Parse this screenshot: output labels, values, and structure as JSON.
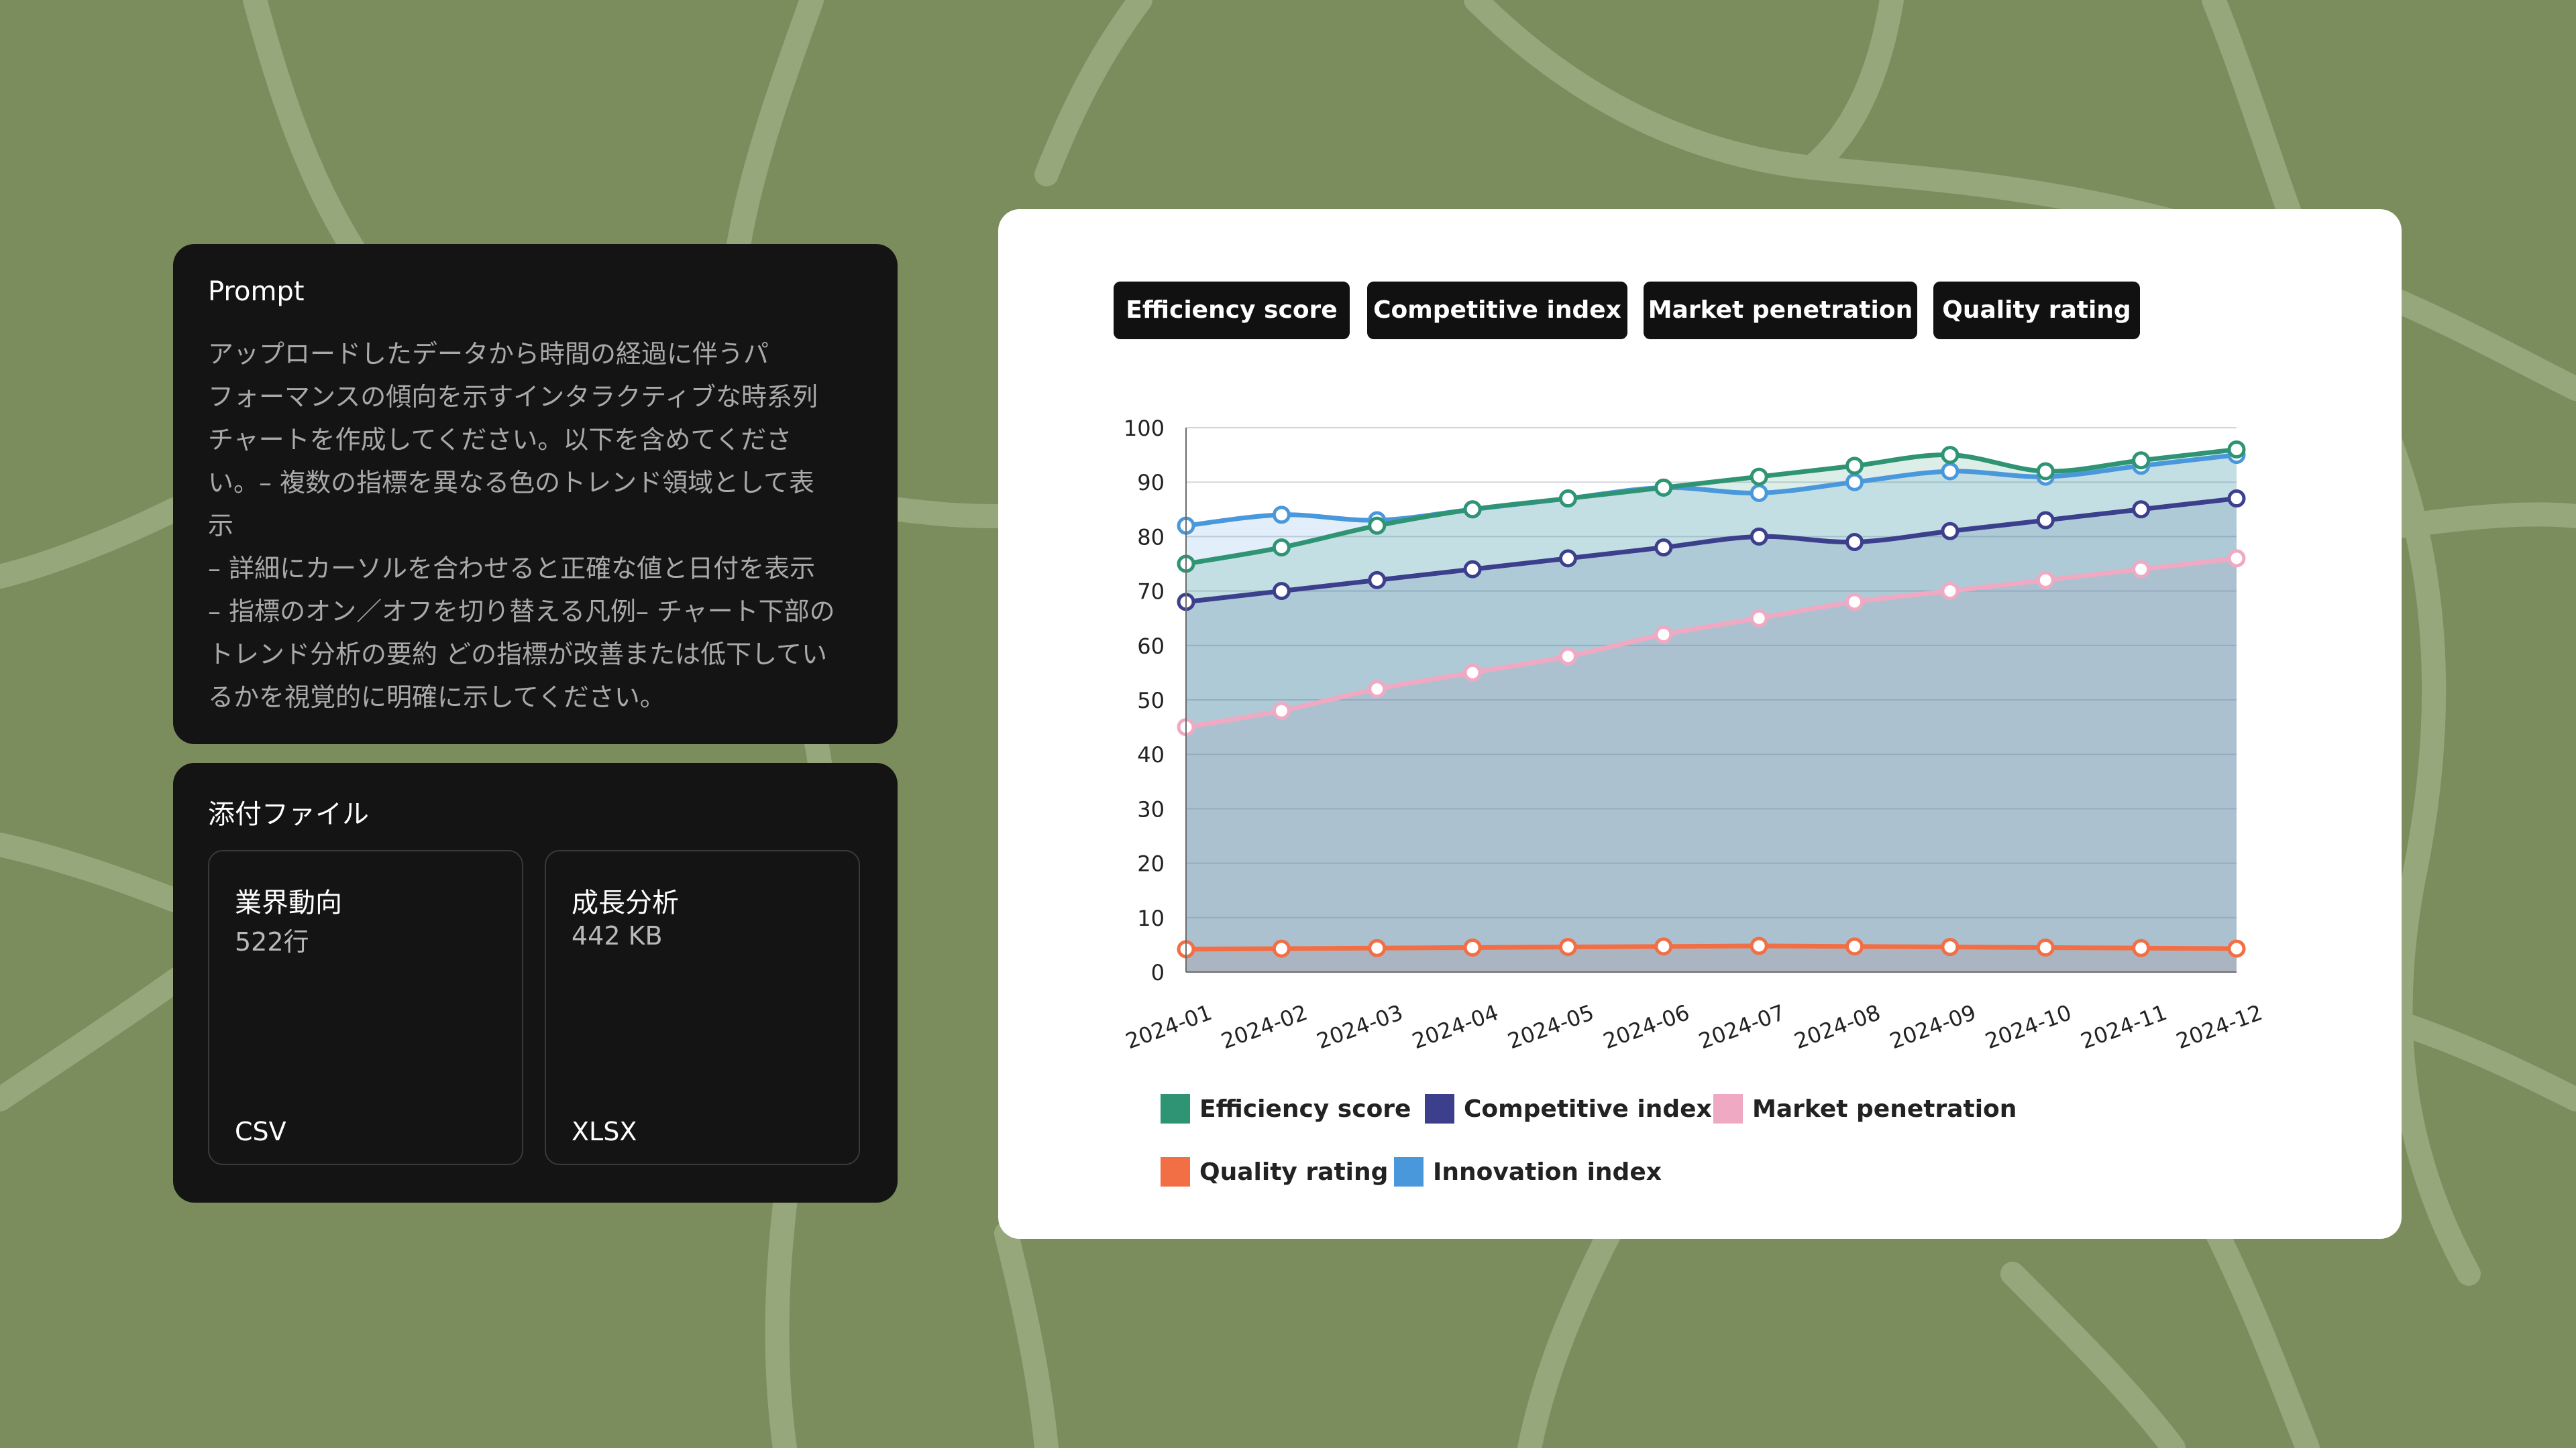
{
  "colors": {
    "background": "#7b8c5d",
    "background_lines": "#97a77c",
    "panel": "#141414",
    "card": "#ffffff"
  },
  "prompt": {
    "title": "Prompt",
    "body": "アップロードしたデータから時間の経過に伴うパ\nフォーマンスの傾向を示すインタラクティブな時系列\nチャートを作成してください。以下を含めてくださ\nい。– 複数の指標を異なる色のトレンド領域として表\n示\n– 詳細にカーソルを合わせると正確な値と日付を表示\n– 指標のオン／オフを切り替える凡例– チャート下部の\nトレンド分析の要約 どの指標が改善または低下してい\nるかを視覚的に明確に示してください。"
  },
  "attachments": {
    "title": "添付ファイル",
    "files": [
      {
        "name": "業界動向",
        "meta": "522行",
        "type": "CSV"
      },
      {
        "name": "成長分析",
        "meta": "442 KB",
        "type": "XLSX"
      }
    ]
  },
  "chips": [
    "Efficiency score",
    "Competitive index",
    "Market penetration",
    "Quality rating"
  ],
  "chart_data": {
    "type": "area",
    "x": [
      "2024-01",
      "2024-02",
      "2024-03",
      "2024-04",
      "2024-05",
      "2024-06",
      "2024-07",
      "2024-08",
      "2024-09",
      "2024-10",
      "2024-11",
      "2024-12"
    ],
    "ylim": [
      0,
      100
    ],
    "yticks": [
      0,
      10,
      20,
      30,
      40,
      50,
      60,
      70,
      80,
      90,
      100
    ],
    "grid": true,
    "legend_position": "bottom",
    "series": [
      {
        "name": "Efficiency score",
        "color": "#2e9474",
        "values": [
          75,
          78,
          82,
          85,
          87,
          89,
          91,
          93,
          95,
          92,
          94,
          96
        ]
      },
      {
        "name": "Competitive index",
        "color": "#3b3f8c",
        "values": [
          68,
          70,
          72,
          74,
          76,
          78,
          80,
          79,
          81,
          83,
          85,
          87
        ]
      },
      {
        "name": "Market penetration",
        "color": "#f0a9c3",
        "values": [
          45,
          48,
          52,
          55,
          58,
          62,
          65,
          68,
          70,
          72,
          74,
          76
        ]
      },
      {
        "name": "Quality rating",
        "color": "#f26e45",
        "values": [
          4.2,
          4.3,
          4.4,
          4.5,
          4.6,
          4.7,
          4.8,
          4.7,
          4.6,
          4.5,
          4.4,
          4.3
        ]
      },
      {
        "name": "Innovation index",
        "color": "#4a98dc",
        "values": [
          82,
          84,
          83,
          85,
          87,
          89,
          88,
          90,
          92,
          91,
          93,
          95
        ]
      }
    ]
  }
}
